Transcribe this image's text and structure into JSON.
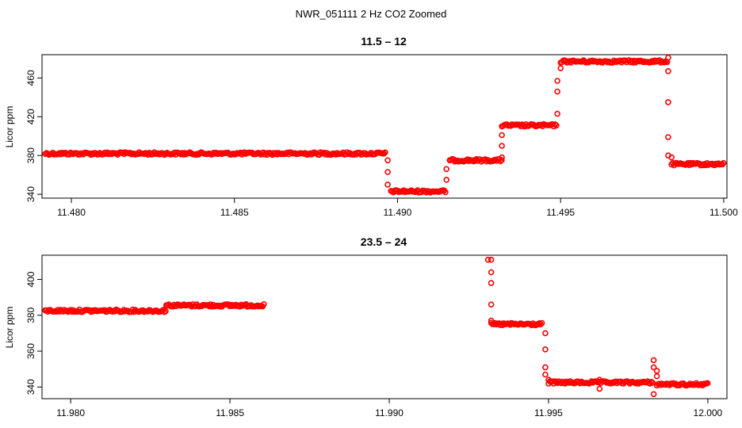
{
  "figure": {
    "title": "NWR_051111  2 Hz CO2 Zoomed"
  },
  "colors": {
    "points": "#ff0000",
    "axis": "#000000"
  },
  "chart_data": [
    {
      "type": "scatter",
      "title": "11.5 – 12",
      "xlabel": "",
      "ylabel": "Licor ppm",
      "xlim": [
        11.4791,
        11.5001
      ],
      "ylim": [
        336,
        484
      ],
      "xticks": [
        11.48,
        11.485,
        11.49,
        11.495,
        11.5
      ],
      "xtick_labels": [
        "11.480",
        "11.485",
        "11.490",
        "11.495",
        "11.500"
      ],
      "yticks": [
        340,
        380,
        420,
        460
      ],
      "ytick_labels": [
        "340",
        "380",
        "420",
        "460"
      ],
      "segments": [
        {
          "x_start": 11.4792,
          "x_end": 11.48965,
          "y": 382
        },
        {
          "x_start": 11.4898,
          "x_end": 11.4915,
          "y": 343
        },
        {
          "x_start": 11.4916,
          "x_end": 11.4932,
          "y": 375
        },
        {
          "x_start": 11.4932,
          "x_end": 11.4949,
          "y": 411
        },
        {
          "x_start": 11.495,
          "x_end": 11.4983,
          "y": 477
        },
        {
          "x_start": 11.4984,
          "x_end": 11.5,
          "y": 371
        }
      ],
      "transition_points": [
        {
          "x": 11.4897,
          "y": 375
        },
        {
          "x": 11.4897,
          "y": 363
        },
        {
          "x": 11.4897,
          "y": 350
        },
        {
          "x": 11.4915,
          "y": 366
        },
        {
          "x": 11.4915,
          "y": 355
        },
        {
          "x": 11.4932,
          "y": 401
        },
        {
          "x": 11.4932,
          "y": 390
        },
        {
          "x": 11.4932,
          "y": 378
        },
        {
          "x": 11.4949,
          "y": 423
        },
        {
          "x": 11.4949,
          "y": 446
        },
        {
          "x": 11.4949,
          "y": 457
        },
        {
          "x": 11.495,
          "y": 470
        },
        {
          "x": 11.4983,
          "y": 481
        },
        {
          "x": 11.4983,
          "y": 467
        },
        {
          "x": 11.4983,
          "y": 435
        },
        {
          "x": 11.4983,
          "y": 399
        },
        {
          "x": 11.4983,
          "y": 380
        },
        {
          "x": 11.4984,
          "y": 378
        }
      ]
    },
    {
      "type": "scatter",
      "title": "23.5 – 24",
      "xlabel": "",
      "ylabel": "Licor ppm",
      "xlim": [
        11.9791,
        12.0006
      ],
      "ylim": [
        333.5,
        413.5
      ],
      "xticks": [
        11.98,
        11.985,
        11.99,
        11.995,
        12.0
      ],
      "xtick_labels": [
        "11.980",
        "11.985",
        "11.990",
        "11.995",
        "12.000"
      ],
      "yticks": [
        340,
        360,
        380,
        400
      ],
      "ytick_labels": [
        "340",
        "360",
        "380",
        "400"
      ],
      "segments": [
        {
          "x_start": 11.9792,
          "x_end": 11.983,
          "y": 382.5
        },
        {
          "x_start": 11.983,
          "x_end": 11.9861,
          "y": 385.5
        },
        {
          "x_start": 11.9932,
          "x_end": 11.9948,
          "y": 375
        },
        {
          "x_start": 11.995,
          "x_end": 11.9983,
          "y": 342.5
        },
        {
          "x_start": 11.9984,
          "x_end": 12.0,
          "y": 341.5
        }
      ],
      "transition_points": [
        {
          "x": 11.9931,
          "y": 411
        },
        {
          "x": 11.9932,
          "y": 411
        },
        {
          "x": 11.9932,
          "y": 404
        },
        {
          "x": 11.9932,
          "y": 398
        },
        {
          "x": 11.9932,
          "y": 386
        },
        {
          "x": 11.9932,
          "y": 377
        },
        {
          "x": 11.9949,
          "y": 370
        },
        {
          "x": 11.9949,
          "y": 361
        },
        {
          "x": 11.9949,
          "y": 351
        },
        {
          "x": 11.9949,
          "y": 347
        },
        {
          "x": 11.995,
          "y": 344
        },
        {
          "x": 11.9966,
          "y": 339
        },
        {
          "x": 11.9966,
          "y": 344
        },
        {
          "x": 11.9983,
          "y": 336
        },
        {
          "x": 11.9983,
          "y": 355
        },
        {
          "x": 11.9983,
          "y": 351
        },
        {
          "x": 11.9984,
          "y": 349
        },
        {
          "x": 11.9984,
          "y": 346
        }
      ]
    }
  ]
}
